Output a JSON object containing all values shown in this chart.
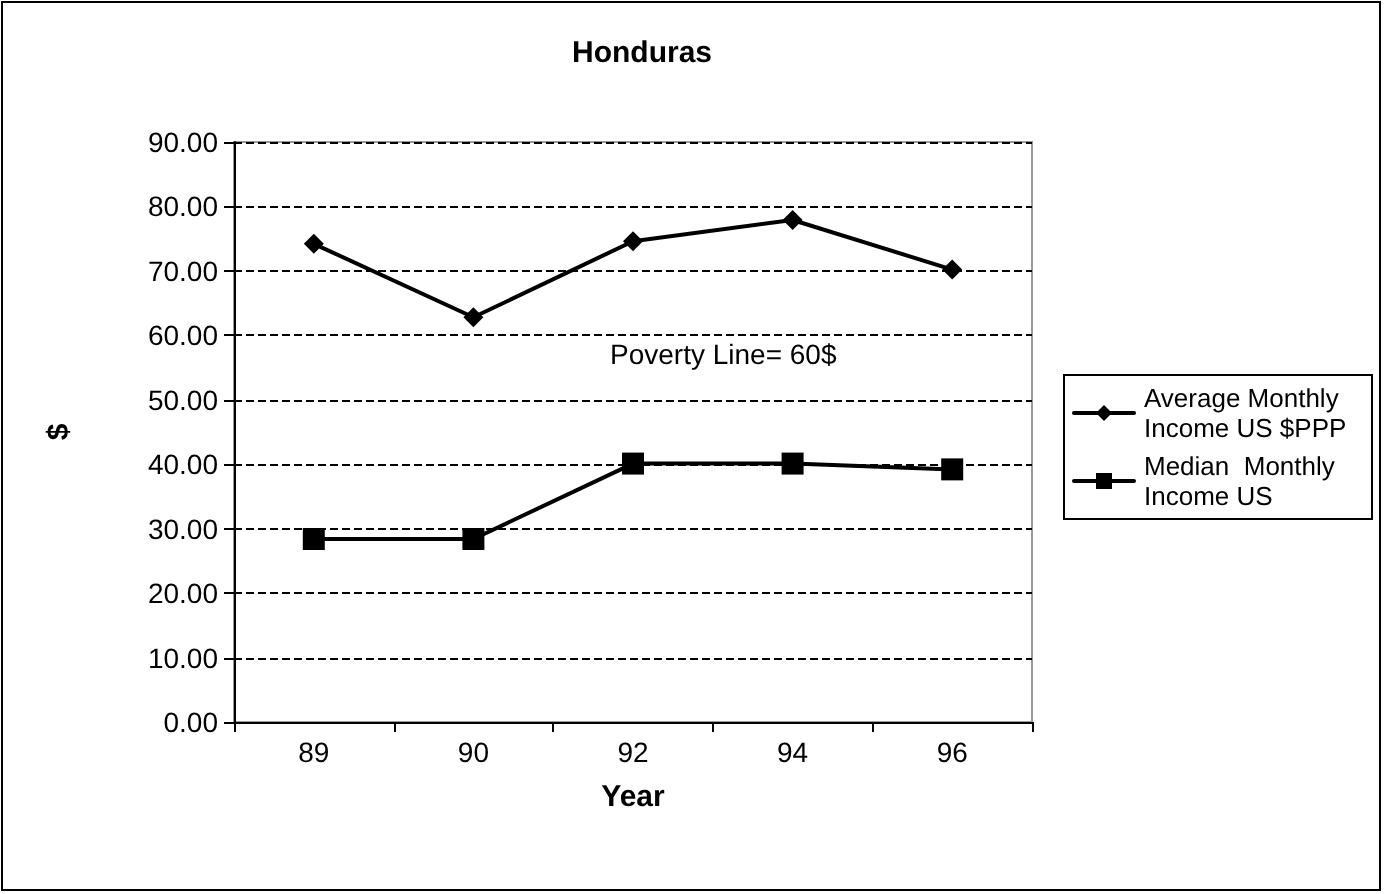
{
  "chart_data": {
    "type": "line",
    "title": "Honduras",
    "xlabel": "Year",
    "ylabel": "$",
    "categories": [
      "89",
      "90",
      "92",
      "94",
      "96"
    ],
    "series": [
      {
        "name": "Average Monthly Income US $PPP",
        "color": "#000000",
        "marker": "diamond",
        "values": [
          74.2,
          62.8,
          74.6,
          77.9,
          70.2
        ]
      },
      {
        "name": "Median  Monthly Income US",
        "color": "#000000",
        "marker": "square",
        "values": [
          28.4,
          28.4,
          40.1,
          40.1,
          39.2
        ]
      }
    ],
    "ylim": [
      0,
      90
    ],
    "yticks": [
      {
        "value": 0,
        "label": "0.00"
      },
      {
        "value": 10,
        "label": "10.00"
      },
      {
        "value": 20,
        "label": "20.00"
      },
      {
        "value": 30,
        "label": "30.00"
      },
      {
        "value": 40,
        "label": "40.00"
      },
      {
        "value": 50,
        "label": "50.00"
      },
      {
        "value": 60,
        "label": "60.00"
      },
      {
        "value": 70,
        "label": "70.00"
      },
      {
        "value": 80,
        "label": "80.00"
      },
      {
        "value": 90,
        "label": "90.00"
      }
    ],
    "grid": "y",
    "legend": "right",
    "line_style": "solid",
    "annotations": [
      "Poverty Line= 60$"
    ]
  }
}
